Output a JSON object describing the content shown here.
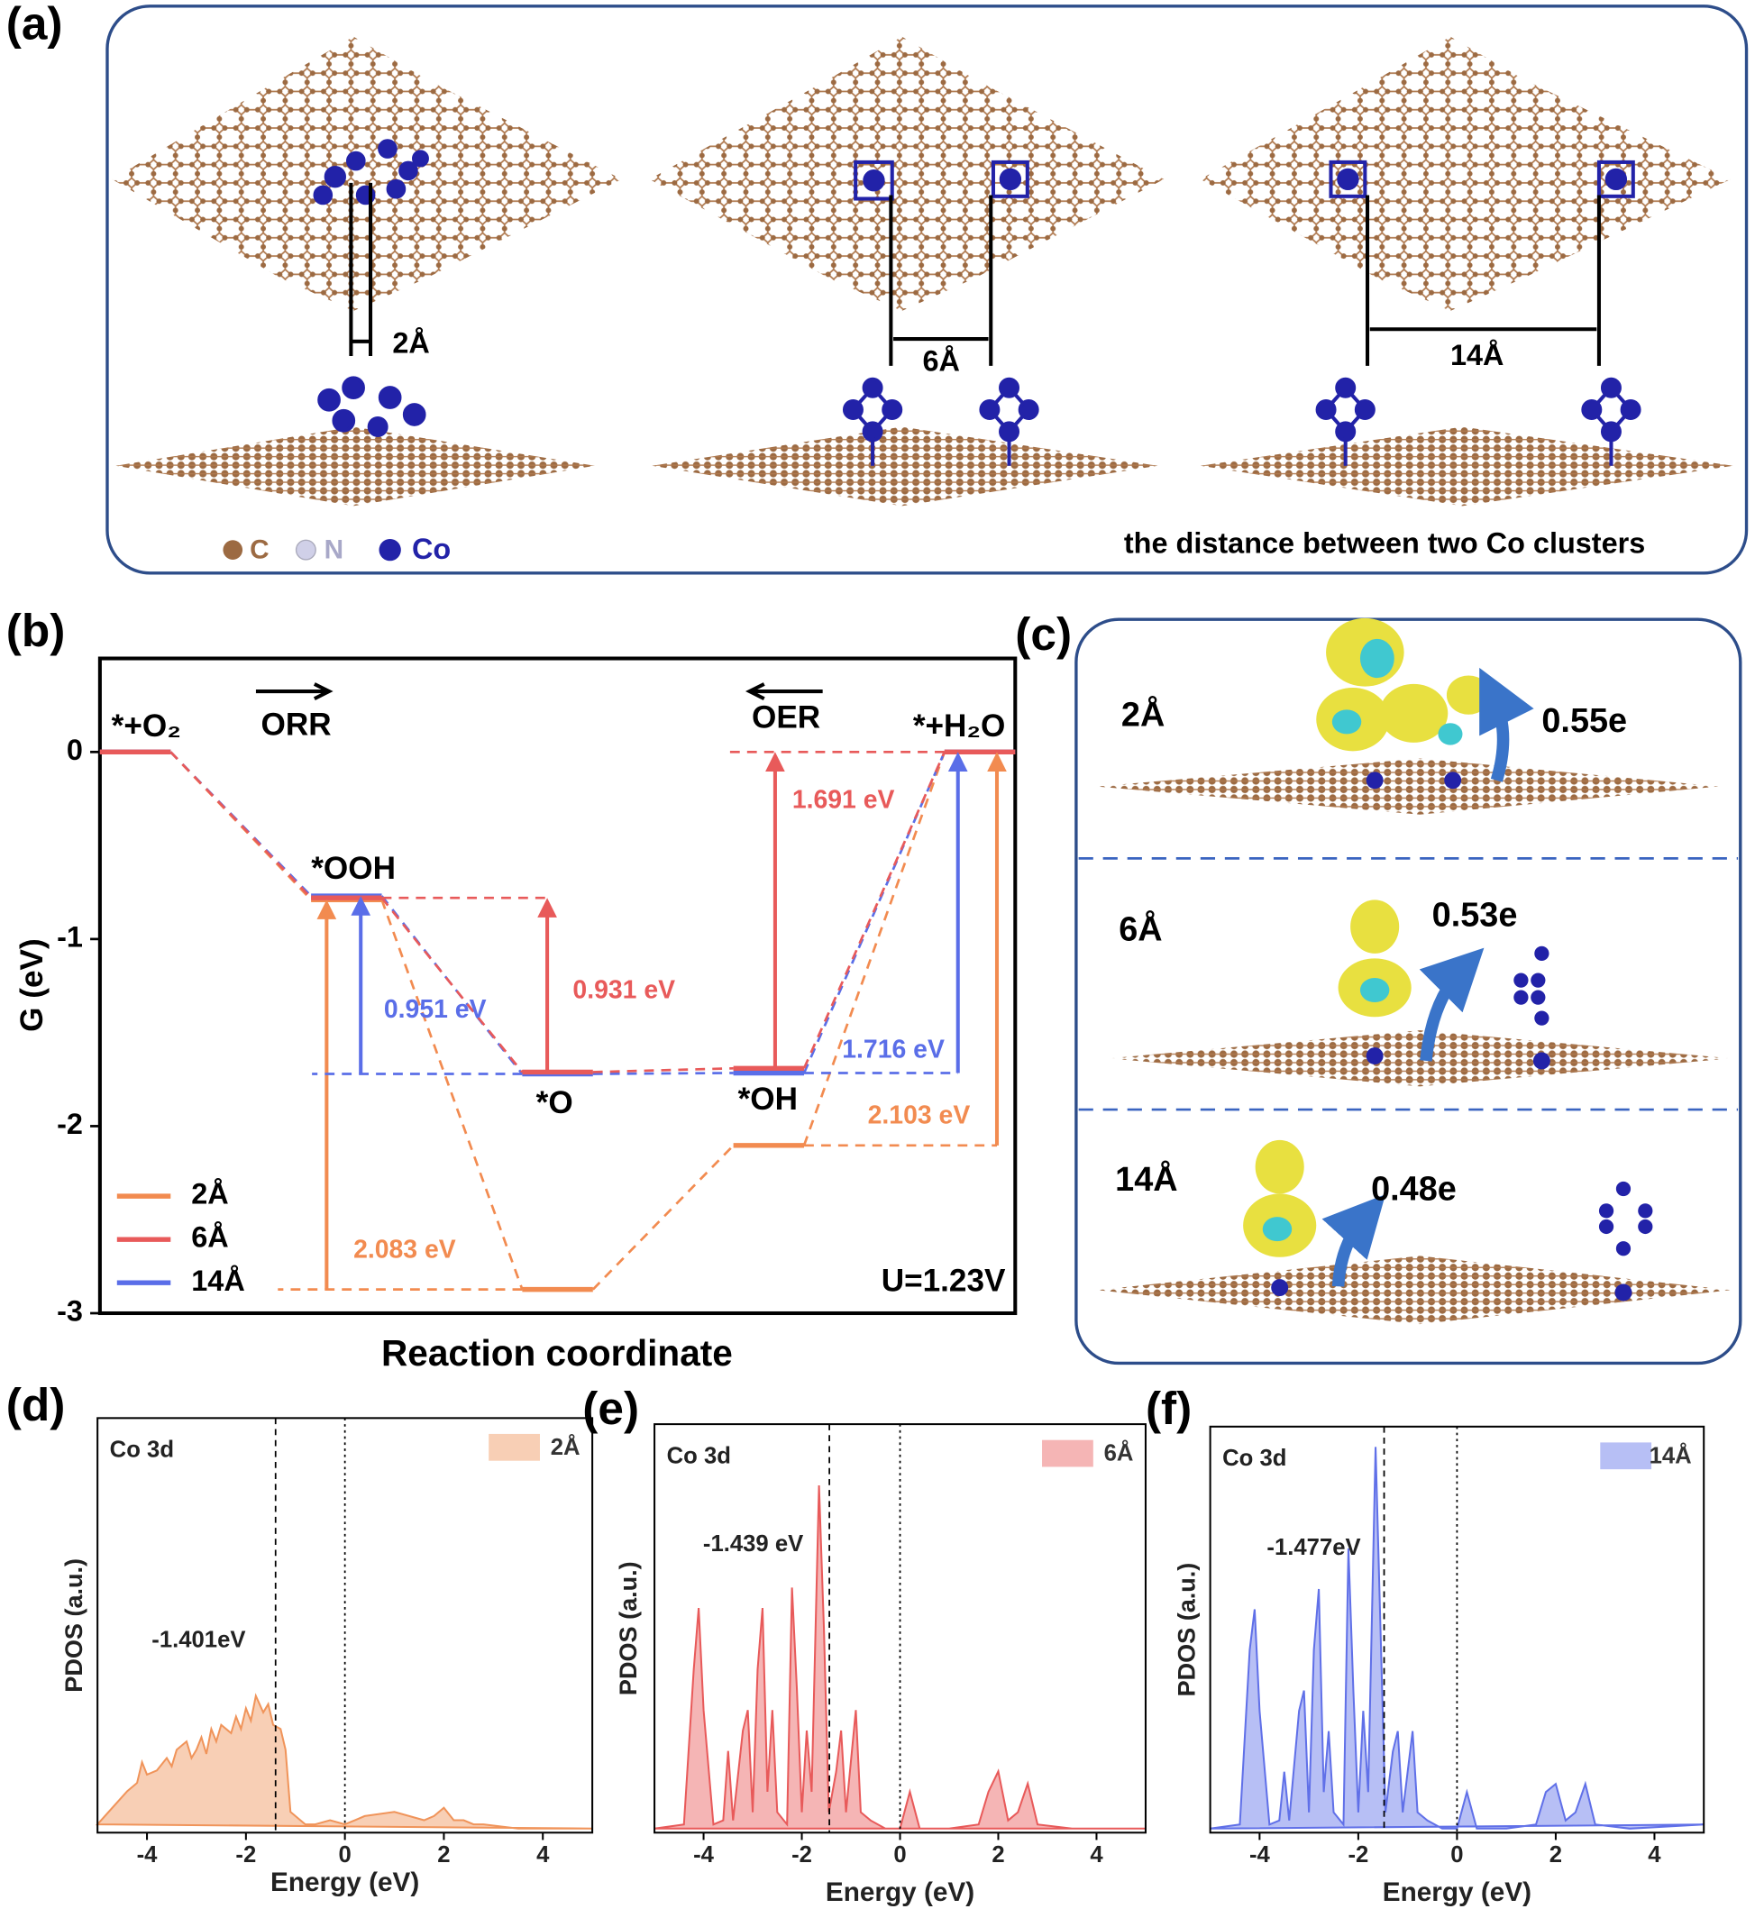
{
  "panel_labels": [
    "(a)",
    "(b)",
    "(c)",
    "(d)",
    "(e)",
    "(f)"
  ],
  "panel_a": {
    "distances": [
      "2Å",
      "6Å",
      "14Å"
    ],
    "legend": [
      "C",
      "N",
      "Co"
    ],
    "caption": "the distance between two Co clusters"
  },
  "panel_c": {
    "rows": [
      {
        "distance": "2Å",
        "charge": "0.55e"
      },
      {
        "distance": "6Å",
        "charge": "0.53e"
      },
      {
        "distance": "14Å",
        "charge": "0.48e"
      }
    ]
  },
  "chart_data": [
    {
      "type": "energy-diagram",
      "xlabel": "Reaction coordinate",
      "ylabel": "G (eV)",
      "categories": [
        "*+O₂",
        "*OOH",
        "*O",
        "*OH",
        "*+H₂O"
      ],
      "ylim": [
        -3,
        0.5
      ],
      "yticks": [
        -3,
        -2,
        -1,
        0
      ],
      "series": [
        {
          "name": "2Å",
          "color": "#f28b50",
          "values": [
            0,
            -0.79,
            -2.873,
            -2.103,
            0
          ]
        },
        {
          "name": "6Å",
          "color": "#e85a5a",
          "values": [
            0,
            -0.78,
            -1.711,
            -1.691,
            0
          ]
        },
        {
          "name": "14Å",
          "color": "#5a6ee8",
          "values": [
            0,
            -0.77,
            -1.721,
            -1.716,
            0
          ]
        }
      ],
      "energy_gaps": [
        "2.083 eV",
        "0.951 eV",
        "0.931 eV",
        "1.691 eV",
        "1.716 eV",
        "2.103 eV"
      ],
      "annotations": [
        "ORR",
        "OER",
        "U=1.23V"
      ]
    },
    {
      "type": "area",
      "title": "Co 3d",
      "xlabel": "Energy (eV)",
      "ylabel": "PDOS (a.u.)",
      "xlim": [
        -5,
        5
      ],
      "xticks": [
        -4,
        -2,
        0,
        2,
        4
      ],
      "ylim": [
        0,
        1
      ],
      "fermi_level": 0,
      "d_band_center": -1.401,
      "d_band_center_label": "-1.401eV",
      "x": [
        -5,
        -4.4,
        -4.2,
        -4.1,
        -4.0,
        -3.8,
        -3.6,
        -3.5,
        -3.4,
        -3.2,
        -3.1,
        -3.0,
        -2.9,
        -2.8,
        -2.7,
        -2.6,
        -2.5,
        -2.3,
        -2.2,
        -2.1,
        -2.0,
        -1.9,
        -1.8,
        -1.65,
        -1.55,
        -1.45,
        -1.3,
        -1.2,
        -1.1,
        -0.9,
        -0.8,
        -0.6,
        -0.3,
        0,
        0.2,
        0.4,
        1,
        1.6,
        1.8,
        2.0,
        2.2,
        2.4,
        2.6,
        2.8,
        3.5,
        5
      ],
      "series": [
        {
          "name": "2Å",
          "color": "#f0945a",
          "values": [
            0.02,
            0.1,
            0.12,
            0.17,
            0.14,
            0.15,
            0.18,
            0.16,
            0.2,
            0.22,
            0.18,
            0.2,
            0.23,
            0.19,
            0.25,
            0.22,
            0.26,
            0.24,
            0.28,
            0.25,
            0.3,
            0.27,
            0.33,
            0.29,
            0.31,
            0.26,
            0.25,
            0.2,
            0.05,
            0.03,
            0.02,
            0.02,
            0.03,
            0.02,
            0.03,
            0.04,
            0.05,
            0.03,
            0.04,
            0.06,
            0.03,
            0.03,
            0.02,
            0.02,
            0.01,
            0.01
          ]
        }
      ]
    },
    {
      "type": "area",
      "title": "Co 3d",
      "xlabel": "Energy (eV)",
      "ylabel": "PDOS (a.u.)",
      "xlim": [
        -5,
        5
      ],
      "xticks": [
        -4,
        -2,
        0,
        2,
        4
      ],
      "ylim": [
        0,
        1
      ],
      "fermi_level": 0,
      "d_band_center": -1.439,
      "d_band_center_label": "-1.439 eV",
      "x": [
        -5,
        -4.4,
        -4.2,
        -4.1,
        -4.0,
        -3.8,
        -3.6,
        -3.5,
        -3.4,
        -3.2,
        -3.1,
        -3.0,
        -2.9,
        -2.8,
        -2.7,
        -2.6,
        -2.5,
        -2.3,
        -2.2,
        -2.1,
        -2.0,
        -1.9,
        -1.8,
        -1.65,
        -1.55,
        -1.45,
        -1.3,
        -1.2,
        -1.1,
        -0.9,
        -0.8,
        -0.6,
        -0.3,
        0,
        0.2,
        0.4,
        1,
        1.6,
        1.8,
        2.0,
        2.2,
        2.4,
        2.6,
        2.8,
        3.5,
        5
      ],
      "series": [
        {
          "name": "6Å",
          "color": "#e85a5a",
          "values": [
            0.01,
            0.02,
            0.4,
            0.55,
            0.3,
            0.02,
            0.03,
            0.2,
            0.03,
            0.25,
            0.3,
            0.05,
            0.4,
            0.55,
            0.1,
            0.3,
            0.05,
            0.02,
            0.6,
            0.35,
            0.05,
            0.25,
            0.1,
            0.85,
            0.5,
            0.05,
            0.15,
            0.25,
            0.05,
            0.3,
            0.05,
            0.03,
            0.01,
            0.01,
            0.1,
            0.01,
            0.01,
            0.02,
            0.1,
            0.15,
            0.03,
            0.05,
            0.12,
            0.02,
            0.01,
            0.01
          ]
        }
      ]
    },
    {
      "type": "area",
      "title": "Co 3d",
      "xlabel": "Energy (eV)",
      "ylabel": "PDOS (a.u.)",
      "xlim": [
        -5,
        5
      ],
      "xticks": [
        -4,
        -2,
        0,
        2,
        4
      ],
      "ylim": [
        0,
        1
      ],
      "fermi_level": 0,
      "d_band_center": -1.477,
      "d_band_center_label": "-1.477eV",
      "x": [
        -5,
        -4.4,
        -4.2,
        -4.1,
        -4.0,
        -3.8,
        -3.6,
        -3.5,
        -3.4,
        -3.2,
        -3.1,
        -3.0,
        -2.9,
        -2.8,
        -2.7,
        -2.6,
        -2.5,
        -2.3,
        -2.2,
        -2.1,
        -2.0,
        -1.9,
        -1.8,
        -1.65,
        -1.55,
        -1.45,
        -1.3,
        -1.2,
        -1.1,
        -0.9,
        -0.8,
        -0.6,
        -0.3,
        0,
        0.2,
        0.4,
        1,
        1.6,
        1.8,
        2.0,
        2.2,
        2.4,
        2.6,
        2.8,
        3.5,
        5
      ],
      "series": [
        {
          "name": "14Å",
          "color": "#6070e8",
          "values": [
            0.01,
            0.02,
            0.45,
            0.55,
            0.3,
            0.02,
            0.03,
            0.15,
            0.03,
            0.3,
            0.35,
            0.05,
            0.45,
            0.6,
            0.1,
            0.25,
            0.05,
            0.02,
            0.7,
            0.35,
            0.05,
            0.3,
            0.1,
            0.95,
            0.5,
            0.05,
            0.2,
            0.25,
            0.05,
            0.25,
            0.05,
            0.03,
            0.01,
            0.01,
            0.1,
            0.01,
            0.01,
            0.02,
            0.1,
            0.12,
            0.03,
            0.05,
            0.12,
            0.02,
            0.01,
            0.02
          ]
        }
      ]
    }
  ]
}
